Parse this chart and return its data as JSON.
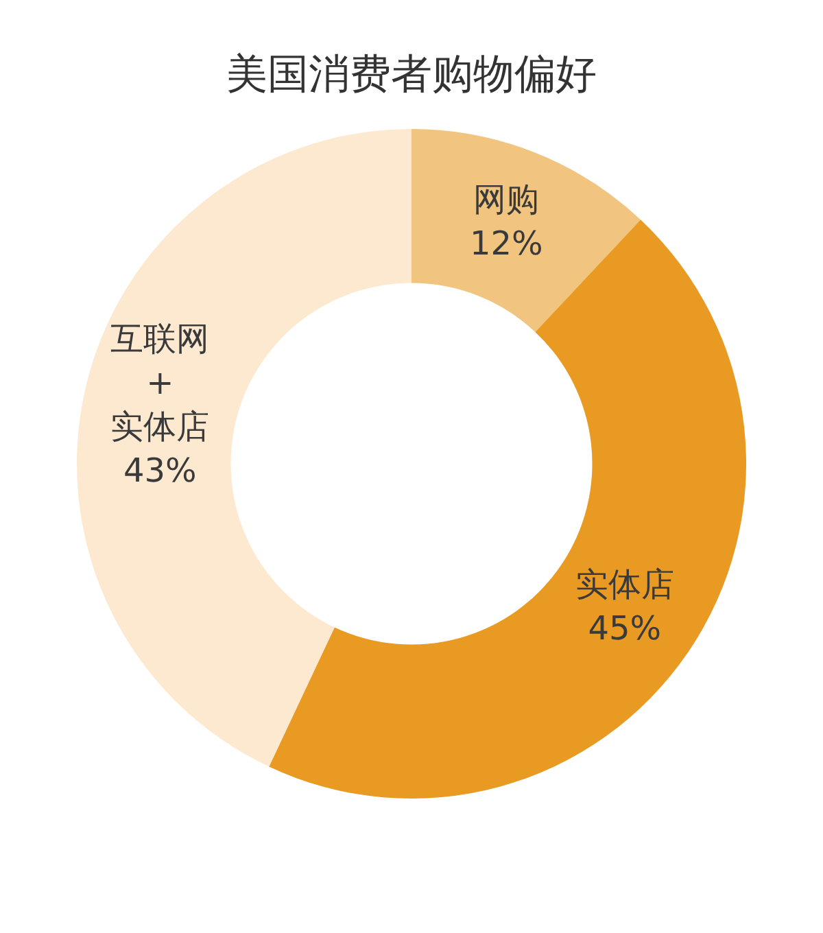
{
  "chart_data": {
    "type": "donut",
    "title": "美国消费者购物偏好",
    "categories": [
      "网购",
      "实体店",
      "互联网\n+\n实体店"
    ],
    "values": [
      12,
      45,
      43
    ],
    "value_labels": [
      "12%",
      "45%",
      "43%"
    ],
    "colors": [
      "#f1c47f",
      "#e99a22",
      "#fde9cf"
    ],
    "legend": false
  }
}
